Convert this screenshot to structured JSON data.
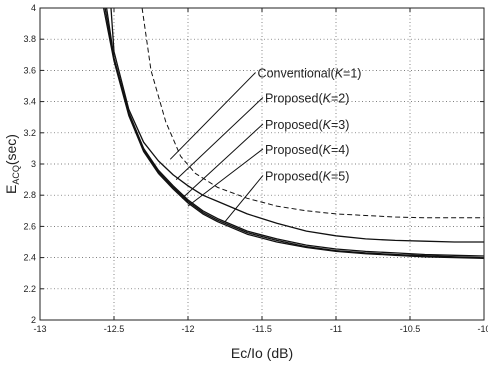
{
  "chart_data": {
    "type": "line",
    "title": "",
    "xlabel": "Ec/Io (dB)",
    "ylabel_main": "E",
    "ylabel_sub": "ACQ",
    "ylabel_unit": "(sec)",
    "xlim": [
      -13,
      -10
    ],
    "ylim": [
      2,
      4
    ],
    "xticks": [
      -13,
      -12.5,
      -12,
      -11.5,
      -11,
      -10.5,
      -10
    ],
    "xtick_labels": [
      "-13",
      "-12.5",
      "-12",
      "-11.5",
      "-11",
      "-10.5",
      "-10"
    ],
    "yticks": [
      2,
      2.2,
      2.4,
      2.6,
      2.8,
      3,
      3.2,
      3.4,
      3.6,
      3.8,
      4
    ],
    "ytick_labels": [
      "2",
      "2.2",
      "2.4",
      "2.6",
      "2.8",
      "3",
      "3.2",
      "3.4",
      "3.6",
      "3.8",
      "4"
    ],
    "grid": true,
    "series": [
      {
        "name": "Conventional(K=1)",
        "label_prefix": "Conventional(",
        "label_k": "K",
        "label_suffix": "=1)",
        "style": "dashed",
        "x": [
          -12.31,
          -12.25,
          -12.15,
          -12.05,
          -11.95,
          -11.8,
          -11.6,
          -11.4,
          -11.2,
          -11.0,
          -10.8,
          -10.6,
          -10.4,
          -10.2,
          -10.0
        ],
        "y": [
          4.0,
          3.6,
          3.27,
          3.05,
          2.94,
          2.85,
          2.78,
          2.73,
          2.7,
          2.68,
          2.67,
          2.66,
          2.655,
          2.655,
          2.655
        ]
      },
      {
        "name": "Proposed(K=2)",
        "label_prefix": "Proposed(",
        "label_k": "K",
        "label_suffix": "=2)",
        "style": "solid",
        "x": [
          -12.52,
          -12.5,
          -12.4,
          -12.3,
          -12.2,
          -12.1,
          -12.0,
          -11.9,
          -11.8,
          -11.6,
          -11.4,
          -11.2,
          -11.0,
          -10.8,
          -10.6,
          -10.4,
          -10.2,
          -10.0
        ],
        "y": [
          4.0,
          3.72,
          3.35,
          3.14,
          3.02,
          2.93,
          2.86,
          2.8,
          2.76,
          2.68,
          2.62,
          2.57,
          2.54,
          2.52,
          2.51,
          2.505,
          2.5,
          2.5
        ]
      },
      {
        "name": "Proposed(K=3)",
        "label_prefix": "Proposed(",
        "label_k": "K",
        "label_suffix": "=3)",
        "style": "solid",
        "x": [
          -12.55,
          -12.5,
          -12.4,
          -12.3,
          -12.2,
          -12.1,
          -12.0,
          -11.9,
          -11.8,
          -11.6,
          -11.4,
          -11.2,
          -11.0,
          -10.8,
          -10.6,
          -10.4,
          -10.2,
          -10.0
        ],
        "y": [
          4.0,
          3.68,
          3.33,
          3.1,
          2.96,
          2.86,
          2.77,
          2.7,
          2.65,
          2.57,
          2.52,
          2.48,
          2.455,
          2.44,
          2.43,
          2.42,
          2.415,
          2.41
        ]
      },
      {
        "name": "Proposed(K=4)",
        "label_prefix": "Proposed(",
        "label_k": "K",
        "label_suffix": "=4)",
        "style": "solid",
        "x": [
          -12.56,
          -12.5,
          -12.4,
          -12.3,
          -12.2,
          -12.1,
          -12.0,
          -11.9,
          -11.8,
          -11.6,
          -11.4,
          -11.2,
          -11.0,
          -10.8,
          -10.6,
          -10.4,
          -10.2,
          -10.0
        ],
        "y": [
          4.0,
          3.67,
          3.32,
          3.09,
          2.95,
          2.85,
          2.76,
          2.69,
          2.64,
          2.56,
          2.51,
          2.47,
          2.445,
          2.43,
          2.42,
          2.412,
          2.405,
          2.4
        ]
      },
      {
        "name": "Proposed(K=5)",
        "label_prefix": "Proposed(",
        "label_k": "K",
        "label_suffix": "=5)",
        "style": "solid",
        "x": [
          -12.57,
          -12.5,
          -12.4,
          -12.3,
          -12.2,
          -12.1,
          -12.0,
          -11.9,
          -11.8,
          -11.6,
          -11.4,
          -11.2,
          -11.0,
          -10.8,
          -10.6,
          -10.4,
          -10.2,
          -10.0
        ],
        "y": [
          4.0,
          3.66,
          3.31,
          3.08,
          2.94,
          2.84,
          2.75,
          2.68,
          2.63,
          2.55,
          2.5,
          2.465,
          2.44,
          2.425,
          2.415,
          2.405,
          2.4,
          2.395
        ]
      }
    ],
    "annotations": [
      {
        "series": 0,
        "text_x": -11.53,
        "text_y": 3.58,
        "tip_x": -12.12,
        "tip_y": 3.03
      },
      {
        "series": 1,
        "text_x": -11.48,
        "text_y": 3.42,
        "tip_x": -12.08,
        "tip_y": 2.9
      },
      {
        "series": 2,
        "text_x": -11.48,
        "text_y": 3.25,
        "tip_x": -12.04,
        "tip_y": 2.78
      },
      {
        "series": 3,
        "text_x": -11.48,
        "text_y": 3.09,
        "tip_x": -12.0,
        "tip_y": 2.73
      },
      {
        "series": 4,
        "text_x": -11.48,
        "text_y": 2.92,
        "tip_x": -11.75,
        "tip_y": 2.63
      }
    ]
  }
}
